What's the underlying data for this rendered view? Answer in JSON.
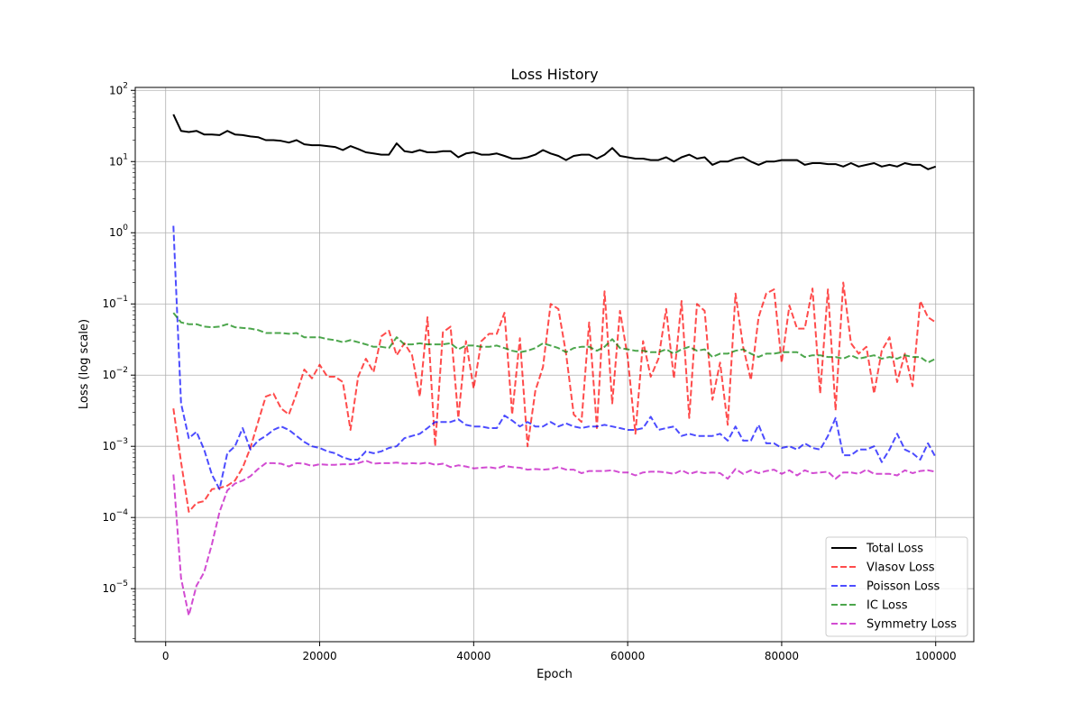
{
  "chart_data": {
    "type": "line",
    "title": "Loss History",
    "xlabel": "Epoch",
    "ylabel": "Loss (log scale)",
    "yscale": "log",
    "xlim": [
      -3950,
      104950
    ],
    "ylim": [
      1.8e-06,
      110
    ],
    "grid": true,
    "legend": "lower-right",
    "x_ticks": [
      0,
      20000,
      40000,
      60000,
      80000,
      100000
    ],
    "x_tick_labels": [
      "0",
      "20000",
      "40000",
      "60000",
      "80000",
      "100000"
    ],
    "y_ticks": [
      1e-05,
      0.0001,
      0.001,
      0.01,
      0.1,
      1,
      10,
      100
    ],
    "y_tick_labels": [
      {
        "base": "10",
        "exp": "−5"
      },
      {
        "base": "10",
        "exp": "−4"
      },
      {
        "base": "10",
        "exp": "−3"
      },
      {
        "base": "10",
        "exp": "−2"
      },
      {
        "base": "10",
        "exp": "−1"
      },
      {
        "base": "10",
        "exp": "0"
      },
      {
        "base": "10",
        "exp": "1"
      },
      {
        "base": "10",
        "exp": "2"
      }
    ],
    "x": {
      "start": 1000,
      "step": 1000,
      "count": 100
    },
    "series": [
      {
        "name": "Total Loss",
        "color": "#000000",
        "style": "solid",
        "values": [
          46,
          27,
          26,
          27,
          24,
          24,
          23.5,
          27,
          24,
          23.5,
          22.5,
          22,
          20,
          20,
          19.5,
          18.5,
          20,
          17.5,
          17,
          17,
          16.5,
          16,
          14.5,
          16.5,
          15,
          13.5,
          13,
          12.5,
          12.5,
          18,
          14,
          13.5,
          14.5,
          13.5,
          13.5,
          14,
          14,
          11.5,
          13,
          13.5,
          12.5,
          12.5,
          13,
          12,
          11,
          11,
          11.5,
          12.5,
          14.5,
          13,
          12,
          10.5,
          12,
          12.5,
          12.5,
          11,
          12.5,
          15.5,
          12,
          11.5,
          11,
          11,
          10.5,
          10.5,
          11.5,
          10,
          11.5,
          12.5,
          11,
          11.5,
          9,
          10,
          10,
          11,
          11.5,
          10,
          9,
          10,
          10,
          10.5,
          10.5,
          10.5,
          9,
          9.5,
          9.5,
          9.2,
          9.2,
          8.5,
          9.5,
          8.5,
          9,
          9.5,
          8.5,
          9,
          8.5,
          9.5,
          9,
          9,
          7.8,
          8.5
        ]
      },
      {
        "name": "Vlasov Loss",
        "color": "#ff0000",
        "style": "dashed",
        "values": [
          0.0034,
          0.0006,
          0.00012,
          0.00016,
          0.00017,
          0.00025,
          0.00026,
          0.00028,
          0.00033,
          0.0005,
          0.00095,
          0.0022,
          0.005,
          0.0055,
          0.0034,
          0.0028,
          0.0055,
          0.012,
          0.009,
          0.014,
          0.0095,
          0.0095,
          0.008,
          0.0017,
          0.0095,
          0.017,
          0.011,
          0.035,
          0.042,
          0.019,
          0.028,
          0.019,
          0.005,
          0.065,
          0.001,
          0.04,
          0.048,
          0.0025,
          0.03,
          0.0065,
          0.03,
          0.038,
          0.038,
          0.075,
          0.0028,
          0.033,
          0.001,
          0.006,
          0.013,
          0.1,
          0.085,
          0.02,
          0.0028,
          0.0022,
          0.055,
          0.0018,
          0.15,
          0.004,
          0.08,
          0.018,
          0.0015,
          0.03,
          0.0095,
          0.017,
          0.085,
          0.009,
          0.11,
          0.0025,
          0.1,
          0.08,
          0.0045,
          0.015,
          0.002,
          0.14,
          0.025,
          0.0085,
          0.065,
          0.14,
          0.16,
          0.015,
          0.095,
          0.045,
          0.045,
          0.165,
          0.0055,
          0.16,
          0.0032,
          0.2,
          0.028,
          0.02,
          0.025,
          0.0055,
          0.022,
          0.034,
          0.008,
          0.02,
          0.007,
          0.11,
          0.065,
          0.055
        ]
      },
      {
        "name": "Poisson Loss",
        "color": "#0000ff",
        "style": "dashed",
        "values": [
          1.25,
          0.004,
          0.0013,
          0.0016,
          0.0009,
          0.0004,
          0.00025,
          0.0008,
          0.001,
          0.0018,
          0.0009,
          0.0012,
          0.0014,
          0.0017,
          0.0019,
          0.0017,
          0.0014,
          0.00115,
          0.001,
          0.00095,
          0.00085,
          0.0008,
          0.0007,
          0.00065,
          0.00065,
          0.00085,
          0.0008,
          0.00085,
          0.00095,
          0.001,
          0.0013,
          0.0014,
          0.0015,
          0.0018,
          0.0022,
          0.0022,
          0.0022,
          0.0024,
          0.002,
          0.0019,
          0.0019,
          0.0018,
          0.0018,
          0.0027,
          0.0023,
          0.0019,
          0.0022,
          0.0019,
          0.0019,
          0.0022,
          0.0019,
          0.0021,
          0.0019,
          0.0018,
          0.0019,
          0.0019,
          0.002,
          0.0019,
          0.0018,
          0.0017,
          0.0017,
          0.0018,
          0.0026,
          0.0017,
          0.0018,
          0.0019,
          0.0014,
          0.0015,
          0.0014,
          0.0014,
          0.0014,
          0.0015,
          0.0012,
          0.0019,
          0.0012,
          0.0012,
          0.002,
          0.0011,
          0.0011,
          0.00095,
          0.001,
          0.0009,
          0.0011,
          0.00095,
          0.0009,
          0.0014,
          0.0025,
          0.00075,
          0.00075,
          0.0009,
          0.0009,
          0.001,
          0.0006,
          0.0009,
          0.0015,
          0.0009,
          0.0008,
          0.00065,
          0.0011,
          0.0007
        ]
      },
      {
        "name": "IC Loss",
        "color": "#008000",
        "style": "dashed",
        "values": [
          0.075,
          0.055,
          0.052,
          0.052,
          0.048,
          0.047,
          0.048,
          0.052,
          0.047,
          0.046,
          0.045,
          0.043,
          0.039,
          0.039,
          0.039,
          0.038,
          0.039,
          0.034,
          0.034,
          0.034,
          0.032,
          0.031,
          0.029,
          0.031,
          0.029,
          0.027,
          0.025,
          0.025,
          0.024,
          0.034,
          0.027,
          0.027,
          0.028,
          0.027,
          0.027,
          0.027,
          0.028,
          0.023,
          0.026,
          0.026,
          0.025,
          0.025,
          0.026,
          0.024,
          0.022,
          0.021,
          0.022,
          0.024,
          0.028,
          0.026,
          0.024,
          0.021,
          0.024,
          0.025,
          0.025,
          0.022,
          0.025,
          0.032,
          0.024,
          0.023,
          0.022,
          0.022,
          0.021,
          0.021,
          0.023,
          0.02,
          0.023,
          0.025,
          0.022,
          0.023,
          0.018,
          0.02,
          0.02,
          0.022,
          0.023,
          0.02,
          0.018,
          0.02,
          0.02,
          0.021,
          0.021,
          0.021,
          0.018,
          0.019,
          0.019,
          0.018,
          0.018,
          0.017,
          0.019,
          0.017,
          0.018,
          0.019,
          0.017,
          0.018,
          0.017,
          0.019,
          0.018,
          0.018,
          0.015,
          0.017
        ]
      },
      {
        "name": "Symmetry Loss",
        "color": "#bf00bf",
        "style": "dashed",
        "values": [
          0.0004,
          1.4e-05,
          4.2e-06,
          1.1e-05,
          1.7e-05,
          4.2e-05,
          0.00012,
          0.00024,
          0.0003,
          0.00033,
          0.00038,
          0.00048,
          0.00058,
          0.00058,
          0.00057,
          0.00052,
          0.00058,
          0.00057,
          0.00053,
          0.00056,
          0.00055,
          0.00055,
          0.00056,
          0.00056,
          0.00058,
          0.00063,
          0.00057,
          0.00058,
          0.00058,
          0.00059,
          0.00057,
          0.00058,
          0.00057,
          0.00059,
          0.00055,
          0.00057,
          0.00051,
          0.00054,
          0.00052,
          0.00049,
          0.0005,
          0.00051,
          0.00049,
          0.00053,
          0.00051,
          0.0005,
          0.00047,
          0.00048,
          0.00047,
          0.00048,
          0.00051,
          0.00047,
          0.00047,
          0.00042,
          0.00045,
          0.00045,
          0.00045,
          0.00046,
          0.00043,
          0.00043,
          0.00039,
          0.00043,
          0.00044,
          0.00044,
          0.00043,
          0.00041,
          0.00046,
          0.00041,
          0.00044,
          0.00042,
          0.00043,
          0.00042,
          0.00035,
          0.00048,
          0.00041,
          0.00046,
          0.00042,
          0.00045,
          0.00047,
          0.00041,
          0.00046,
          0.00039,
          0.00046,
          0.00042,
          0.00043,
          0.00044,
          0.00035,
          0.00043,
          0.00043,
          0.00041,
          0.00047,
          0.00041,
          0.00041,
          0.00041,
          0.00039,
          0.00046,
          0.00042,
          0.00045,
          0.00046,
          0.00044
        ]
      }
    ]
  }
}
